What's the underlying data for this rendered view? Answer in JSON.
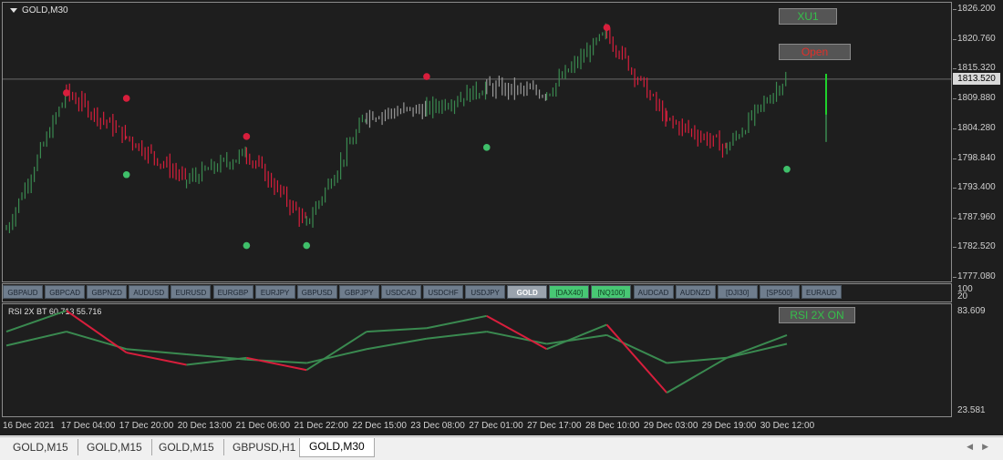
{
  "chart_title": "GOLD,M30",
  "price_axis": [
    "1826.200",
    "1820.760",
    "1815.320",
    "1813.520",
    "1809.880",
    "1804.280",
    "1798.840",
    "1793.400",
    "1787.960",
    "1782.520",
    "1777.080"
  ],
  "current_price": "1813.520",
  "buttons": {
    "xu1": "XU1",
    "open": "Open",
    "rsi": "RSI 2X ON"
  },
  "colors": {
    "up": "#3a8a50",
    "down": "#d81e3c",
    "neutral": "#9a9a9a",
    "button_green": "#35c04a",
    "button_red": "#e0302a"
  },
  "symbols": [
    "GBPAUD",
    "GBPCAD",
    "GBPNZD",
    "AUDUSD",
    "EURUSD",
    "EURGBP",
    "EURJPY",
    "GBPUSD",
    "GBPJPY",
    "USDCAD",
    "USDCHF",
    "USDJPY",
    "GOLD",
    "[DAX40]",
    "[NQ100]",
    "AUDCAD",
    "AUDNZD",
    "[DJI30]",
    "[SP500]",
    "EURAUD"
  ],
  "active_symbol": "GOLD",
  "highlighted_symbols": [
    "[DAX40]",
    "[NQ100]"
  ],
  "indicator": {
    "label": "RSI 2X BT 60.713 55.716",
    "axis": [
      "100",
      "20",
      "83.609",
      "23.581"
    ]
  },
  "time_labels": [
    "16 Dec 2021",
    "17 Dec 04:00",
    "17 Dec 20:00",
    "20 Dec 13:00",
    "21 Dec 06:00",
    "21 Dec 22:00",
    "22 Dec 15:00",
    "23 Dec 08:00",
    "27 Dec 01:00",
    "27 Dec 17:00",
    "28 Dec 10:00",
    "29 Dec 03:00",
    "29 Dec 19:00",
    "30 Dec 12:00"
  ],
  "tabs": [
    "GOLD,M15",
    "GOLD,M15",
    "GOLD,M15",
    "GBPUSD,H1",
    "GOLD,M30"
  ],
  "active_tab": "GOLD,M30",
  "chart_data": {
    "type": "bar",
    "x": [
      "16 Dec 2021",
      "17 Dec 04:00",
      "17 Dec 20:00",
      "20 Dec 13:00",
      "21 Dec 06:00",
      "21 Dec 22:00",
      "22 Dec 15:00",
      "23 Dec 08:00",
      "27 Dec 01:00",
      "27 Dec 17:00",
      "28 Dec 10:00",
      "29 Dec 03:00",
      "29 Dec 19:00",
      "30 Dec 12:00"
    ],
    "y": [
      1786,
      1811,
      1803,
      1795,
      1800,
      1787,
      1807,
      1808,
      1812,
      1811,
      1822,
      1806,
      1801,
      1814
    ],
    "ylim": [
      1777.08,
      1826.2
    ],
    "signals_sell": [
      {
        "x": "17 Dec 04:00",
        "y": 1811
      },
      {
        "x": "17 Dec 20:00",
        "y": 1810
      },
      {
        "x": "21 Dec 06:00",
        "y": 1803
      },
      {
        "x": "23 Dec 08:00",
        "y": 1814
      },
      {
        "x": "28 Dec 10:00",
        "y": 1823
      }
    ],
    "signals_buy": [
      {
        "x": "17 Dec 20:00",
        "y": 1796
      },
      {
        "x": "21 Dec 06:00",
        "y": 1783
      },
      {
        "x": "21 Dec 22:00",
        "y": 1783
      },
      {
        "x": "27 Dec 01:00",
        "y": 1801
      },
      {
        "x": "30 Dec 12:00",
        "y": 1797
      }
    ],
    "rsi": {
      "ylim": [
        23.581,
        83.609
      ],
      "fast": [
        70,
        82,
        58,
        51,
        55,
        48,
        70,
        72,
        79,
        60,
        74,
        35,
        55,
        68
      ],
      "slow": [
        62,
        70,
        60,
        57,
        54,
        52,
        60,
        66,
        70,
        63,
        68,
        52,
        55,
        63
      ]
    }
  }
}
